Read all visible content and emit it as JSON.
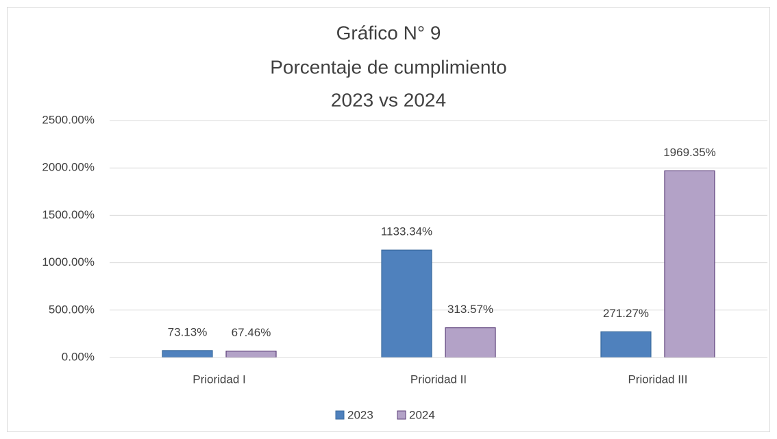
{
  "chart_data": {
    "type": "bar",
    "title": [
      "Gráfico N° 9",
      "Porcentaje de cumplimiento",
      "2023 vs 2024"
    ],
    "categories": [
      "Prioridad I",
      "Prioridad II",
      "Prioridad III"
    ],
    "series": [
      {
        "name": "2023",
        "color": "#4f81bd",
        "values": [
          73.13,
          1133.34,
          271.27
        ],
        "value_labels": [
          "73.13%",
          "1133.34%",
          "271.27%"
        ]
      },
      {
        "name": "2024",
        "color": "#b3a2c7",
        "values": [
          67.46,
          313.57,
          1969.35
        ],
        "value_labels": [
          "67.46%",
          "313.57%",
          "1969.35%"
        ]
      }
    ],
    "ylim": [
      0,
      2500
    ],
    "yticks": [
      {
        "value": 0,
        "label": "0.00%"
      },
      {
        "value": 500,
        "label": "500.00%"
      },
      {
        "value": 1000,
        "label": "1000.00%"
      },
      {
        "value": 1500,
        "label": "1500.00%"
      },
      {
        "value": 2000,
        "label": "2000.00%"
      },
      {
        "value": 2500,
        "label": "2500.00%"
      }
    ],
    "grid": true,
    "legend": "bottom"
  }
}
